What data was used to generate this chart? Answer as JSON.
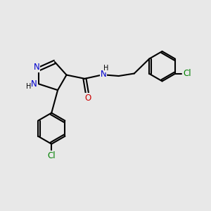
{
  "bg_color": "#e8e8e8",
  "bond_color": "#000000",
  "N_color": "#0000cd",
  "O_color": "#cc0000",
  "Cl_color": "#008000",
  "line_width": 1.5,
  "font_size": 8.5,
  "fig_size": [
    3.0,
    3.0
  ],
  "dpi": 100,
  "xlim": [
    0,
    10
  ],
  "ylim": [
    0,
    10
  ]
}
